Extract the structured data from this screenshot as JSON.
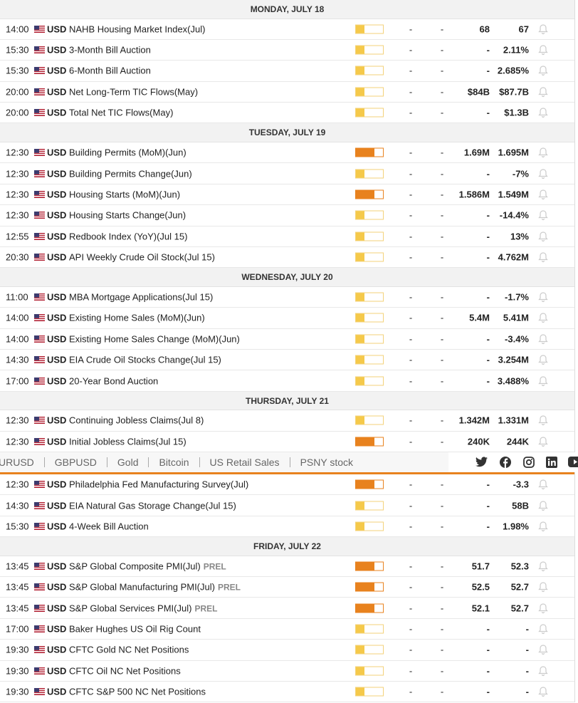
{
  "days": [
    {
      "title": "MONDAY, JULY 18",
      "events": [
        {
          "time": "14:00",
          "currency": "USD",
          "event": "NAHB Housing Market Index(Jul)",
          "impact": "low",
          "actual": "-",
          "deviation": "-",
          "consensus": "68",
          "previous": "67"
        },
        {
          "time": "15:30",
          "currency": "USD",
          "event": "3-Month Bill Auction",
          "impact": "low",
          "actual": "-",
          "deviation": "-",
          "consensus": "-",
          "previous": "2.11%"
        },
        {
          "time": "15:30",
          "currency": "USD",
          "event": "6-Month Bill Auction",
          "impact": "low",
          "actual": "-",
          "deviation": "-",
          "consensus": "-",
          "previous": "2.685%"
        },
        {
          "time": "20:00",
          "currency": "USD",
          "event": "Net Long-Term TIC Flows(May)",
          "impact": "low",
          "actual": "-",
          "deviation": "-",
          "consensus": "$84B",
          "previous": "$87.7B"
        },
        {
          "time": "20:00",
          "currency": "USD",
          "event": "Total Net TIC Flows(May)",
          "impact": "low",
          "actual": "-",
          "deviation": "-",
          "consensus": "-",
          "previous": "$1.3B"
        }
      ]
    },
    {
      "title": "TUESDAY, JULY 19",
      "events": [
        {
          "time": "12:30",
          "currency": "USD",
          "event": "Building Permits (MoM)(Jun)",
          "impact": "high",
          "actual": "-",
          "deviation": "-",
          "consensus": "1.69M",
          "previous": "1.695M"
        },
        {
          "time": "12:30",
          "currency": "USD",
          "event": "Building Permits Change(Jun)",
          "impact": "low",
          "actual": "-",
          "deviation": "-",
          "consensus": "-",
          "previous": "-7%"
        },
        {
          "time": "12:30",
          "currency": "USD",
          "event": "Housing Starts (MoM)(Jun)",
          "impact": "high",
          "actual": "-",
          "deviation": "-",
          "consensus": "1.586M",
          "previous": "1.549M"
        },
        {
          "time": "12:30",
          "currency": "USD",
          "event": "Housing Starts Change(Jun)",
          "impact": "low",
          "actual": "-",
          "deviation": "-",
          "consensus": "-",
          "previous": "-14.4%"
        },
        {
          "time": "12:55",
          "currency": "USD",
          "event": "Redbook Index (YoY)(Jul 15)",
          "impact": "low",
          "actual": "-",
          "deviation": "-",
          "consensus": "-",
          "previous": "13%"
        },
        {
          "time": "20:30",
          "currency": "USD",
          "event": "API Weekly Crude Oil Stock(Jul 15)",
          "impact": "low",
          "actual": "-",
          "deviation": "-",
          "consensus": "-",
          "previous": "4.762M"
        }
      ]
    },
    {
      "title": "WEDNESDAY, JULY 20",
      "events": [
        {
          "time": "11:00",
          "currency": "USD",
          "event": "MBA Mortgage Applications(Jul 15)",
          "impact": "low",
          "actual": "-",
          "deviation": "-",
          "consensus": "-",
          "previous": "-1.7%"
        },
        {
          "time": "14:00",
          "currency": "USD",
          "event": "Existing Home Sales (MoM)(Jun)",
          "impact": "low",
          "actual": "-",
          "deviation": "-",
          "consensus": "5.4M",
          "previous": "5.41M"
        },
        {
          "time": "14:00",
          "currency": "USD",
          "event": "Existing Home Sales Change (MoM)(Jun)",
          "impact": "low",
          "actual": "-",
          "deviation": "-",
          "consensus": "-",
          "previous": "-3.4%"
        },
        {
          "time": "14:30",
          "currency": "USD",
          "event": "EIA Crude Oil Stocks Change(Jul 15)",
          "impact": "low",
          "actual": "-",
          "deviation": "-",
          "consensus": "-",
          "previous": "3.254M"
        },
        {
          "time": "17:00",
          "currency": "USD",
          "event": "20-Year Bond Auction",
          "impact": "low",
          "actual": "-",
          "deviation": "-",
          "consensus": "-",
          "previous": "3.488%"
        }
      ]
    },
    {
      "title": "THURSDAY, JULY 21",
      "events": [
        {
          "time": "12:30",
          "currency": "USD",
          "event": "Continuing Jobless Claims(Jul 8)",
          "impact": "low",
          "actual": "-",
          "deviation": "-",
          "consensus": "1.342M",
          "previous": "1.331M"
        },
        {
          "time": "12:30",
          "currency": "USD",
          "event": "Initial Jobless Claims(Jul 15)",
          "impact": "high",
          "actual": "-",
          "deviation": "-",
          "consensus": "240K",
          "previous": "244K"
        },
        {
          "time": "12:30",
          "currency": "USD",
          "event": "Philadelphia Fed Manufacturing Survey(Jul)",
          "impact": "high",
          "actual": "-",
          "deviation": "-",
          "consensus": "-",
          "previous": "-3.3"
        },
        {
          "time": "14:30",
          "currency": "USD",
          "event": "EIA Natural Gas Storage Change(Jul 15)",
          "impact": "low",
          "actual": "-",
          "deviation": "-",
          "consensus": "-",
          "previous": "58B"
        },
        {
          "time": "15:30",
          "currency": "USD",
          "event": "4-Week Bill Auction",
          "impact": "low",
          "actual": "-",
          "deviation": "-",
          "consensus": "-",
          "previous": "1.98%"
        }
      ]
    },
    {
      "title": "FRIDAY, JULY 22",
      "events": [
        {
          "time": "13:45",
          "currency": "USD",
          "event": "S&P Global Composite PMI(Jul)",
          "tag": "PREL",
          "impact": "high",
          "actual": "-",
          "deviation": "-",
          "consensus": "51.7",
          "previous": "52.3"
        },
        {
          "time": "13:45",
          "currency": "USD",
          "event": "S&P Global Manufacturing PMI(Jul)",
          "tag": "PREL",
          "impact": "high",
          "actual": "-",
          "deviation": "-",
          "consensus": "52.5",
          "previous": "52.7"
        },
        {
          "time": "13:45",
          "currency": "USD",
          "event": "S&P Global Services PMI(Jul)",
          "tag": "PREL",
          "impact": "high",
          "actual": "-",
          "deviation": "-",
          "consensus": "52.1",
          "previous": "52.7"
        },
        {
          "time": "17:00",
          "currency": "USD",
          "event": "Baker Hughes US Oil Rig Count",
          "impact": "low",
          "actual": "-",
          "deviation": "-",
          "consensus": "-",
          "previous": "-"
        },
        {
          "time": "19:30",
          "currency": "USD",
          "event": "CFTC Gold NC Net Positions",
          "impact": "low",
          "actual": "-",
          "deviation": "-",
          "consensus": "-",
          "previous": "-"
        },
        {
          "time": "19:30",
          "currency": "USD",
          "event": "CFTC Oil NC Net Positions",
          "impact": "low",
          "actual": "-",
          "deviation": "-",
          "consensus": "-",
          "previous": "-"
        },
        {
          "time": "19:30",
          "currency": "USD",
          "event": "CFTC S&P 500 NC Net Positions",
          "impact": "low",
          "actual": "-",
          "deviation": "-",
          "consensus": "-",
          "previous": "-"
        }
      ]
    }
  ],
  "nav": {
    "links": [
      "URUSD",
      "GBPUSD",
      "Gold",
      "Bitcoin",
      "US Retail Sales",
      "PSNY stock"
    ]
  }
}
